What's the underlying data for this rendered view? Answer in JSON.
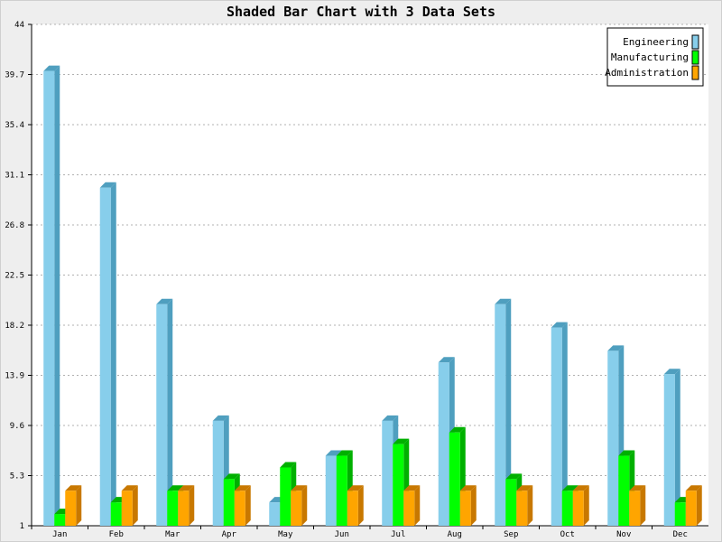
{
  "chart_data": {
    "type": "bar",
    "title": "Shaded Bar Chart with 3 Data Sets",
    "xlabel": "",
    "ylabel": "",
    "categories": [
      "Jan",
      "Feb",
      "Mar",
      "Apr",
      "May",
      "Jun",
      "Jul",
      "Aug",
      "Sep",
      "Oct",
      "Nov",
      "Dec"
    ],
    "yticks": [
      "1",
      "5.3",
      "9.6",
      "13.9",
      "18.2",
      "22.5",
      "26.8",
      "31.1",
      "35.4",
      "39.7",
      "44"
    ],
    "ylim": [
      1,
      44
    ],
    "grid": true,
    "legend_position": "top-right",
    "series": [
      {
        "name": "Engineering",
        "color": "#87CEEB",
        "shade": "#4F9FBF",
        "values": [
          40,
          30,
          20,
          10,
          3,
          7,
          10,
          15,
          20,
          18,
          16,
          14
        ]
      },
      {
        "name": "Manufacturing",
        "color": "#00FF00",
        "shade": "#00B000",
        "values": [
          2,
          3,
          4,
          5,
          6,
          7,
          8,
          9,
          5,
          4,
          7,
          3
        ]
      },
      {
        "name": "Administration",
        "color": "#FFA500",
        "shade": "#C87800",
        "values": [
          4,
          4,
          4,
          4,
          4,
          4,
          4,
          4,
          4,
          4,
          4,
          4
        ]
      }
    ]
  }
}
